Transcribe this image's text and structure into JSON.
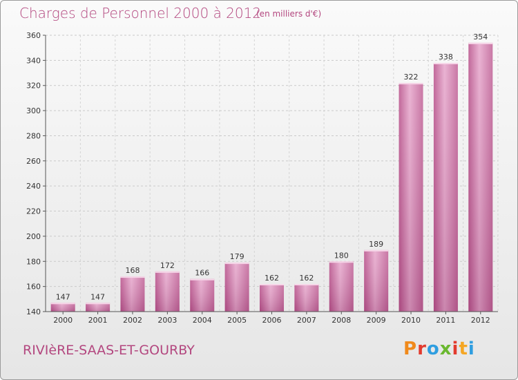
{
  "header": {
    "title": "Charges de Personnel 2000 à 2012",
    "subtitle": "(en milliers d'€)"
  },
  "footer": {
    "commune": "RIVIèRE-SAAS-ET-GOURBY",
    "logo": "Proxiti",
    "logo_colors": [
      "#f08a1c",
      "#e23b2e",
      "#2f9ee0",
      "#6ab82f",
      "#e23b2e",
      "#f5a623",
      "#2f9ee0"
    ]
  },
  "chart_data": {
    "type": "bar",
    "categories": [
      "2000",
      "2001",
      "2002",
      "2003",
      "2004",
      "2005",
      "2006",
      "2007",
      "2008",
      "2009",
      "2010",
      "2011",
      "2012"
    ],
    "values": [
      147,
      147,
      168,
      172,
      166,
      179,
      162,
      162,
      180,
      189,
      322,
      338,
      354
    ],
    "ylim": [
      140,
      360
    ],
    "yticks": [
      140,
      160,
      180,
      200,
      220,
      240,
      260,
      280,
      300,
      320,
      340,
      360
    ],
    "grid": true,
    "bar_color": "#c9669e",
    "bar_color_light": "#e9acd0"
  }
}
